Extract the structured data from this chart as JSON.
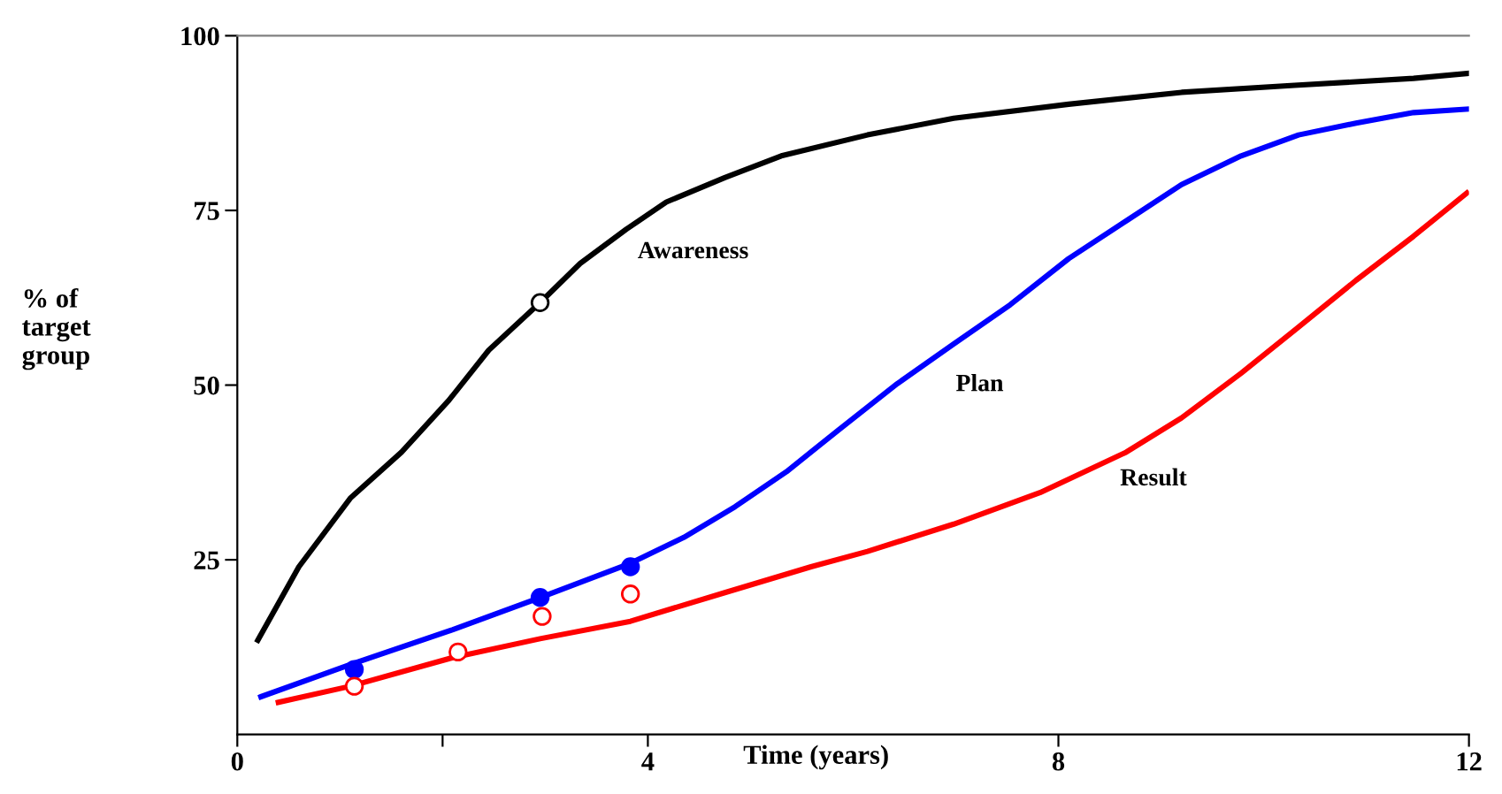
{
  "chart_data": {
    "type": "line",
    "xlabel": "Time (years)",
    "ylabel": "% of\ntarget\ngroup",
    "xlim": [
      0,
      12
    ],
    "ylim": [
      0,
      100
    ],
    "xticks": [
      0,
      {
        "value": 2,
        "label": null
      },
      4,
      8,
      12
    ],
    "yticks": [
      25,
      50,
      75,
      100
    ],
    "grid": false,
    "legend": false,
    "marker": "none",
    "line_style": "solid",
    "series": [
      {
        "name": "Awareness",
        "color": "#000000",
        "x": [
          0.2,
          0.6,
          1.1,
          1.6,
          2.06,
          2.45,
          2.95,
          3.34,
          3.79,
          4.18,
          4.75,
          5.3,
          6.14,
          6.98,
          8.1,
          9.2,
          10.3,
          11.46,
          11.98
        ],
        "values": [
          13.5,
          24,
          33.8,
          40.4,
          47.8,
          55,
          61.8,
          67.4,
          72.3,
          76.2,
          79.7,
          82.8,
          85.8,
          88.2,
          90.2,
          91.9,
          92.9,
          93.9,
          94.6
        ]
      },
      {
        "name": "Plan",
        "color": "#0000ff",
        "x": [
          0.23,
          1.1,
          2.1,
          2.95,
          3.83,
          4.35,
          4.85,
          5.35,
          5.86,
          6.43,
          6.98,
          7.53,
          8.1,
          8.66,
          9.2,
          9.78,
          10.34,
          10.9,
          11.46,
          11.98
        ],
        "values": [
          5.4,
          10,
          15,
          19.6,
          24.5,
          28.2,
          32.6,
          37.6,
          43.6,
          50.2,
          55.9,
          61.5,
          68.1,
          73.5,
          78.7,
          82.8,
          85.8,
          87.5,
          89,
          89.5
        ]
      },
      {
        "name": "Result",
        "color": "#ff0000",
        "x": [
          0.4,
          1.1,
          2.1,
          2.95,
          3.83,
          4.75,
          5.59,
          6.14,
          6.98,
          7.82,
          8.66,
          9.2,
          9.78,
          10.34,
          10.9,
          11.46,
          11.98
        ],
        "values": [
          4.6,
          6.9,
          11,
          13.7,
          16.2,
          20.3,
          24,
          26.2,
          30.1,
          34.6,
          40.4,
          45.3,
          51.7,
          58.3,
          65,
          71.3,
          77.5
        ]
      },
      {
        "type": "scatter",
        "marker": "circle-open",
        "color": "#000000",
        "x": [
          2.95
        ],
        "values": [
          61.8
        ]
      },
      {
        "type": "scatter",
        "marker": "circle",
        "color": "#0000ff",
        "x": [
          1.14,
          2.95,
          3.83
        ],
        "values": [
          9.3,
          19.6,
          24
        ]
      },
      {
        "type": "scatter",
        "marker": "circle-open",
        "color": "#ff0000",
        "x": [
          1.14,
          2.15,
          2.97,
          3.83
        ],
        "values": [
          6.9,
          11.8,
          16.9,
          20.1
        ]
      }
    ]
  }
}
